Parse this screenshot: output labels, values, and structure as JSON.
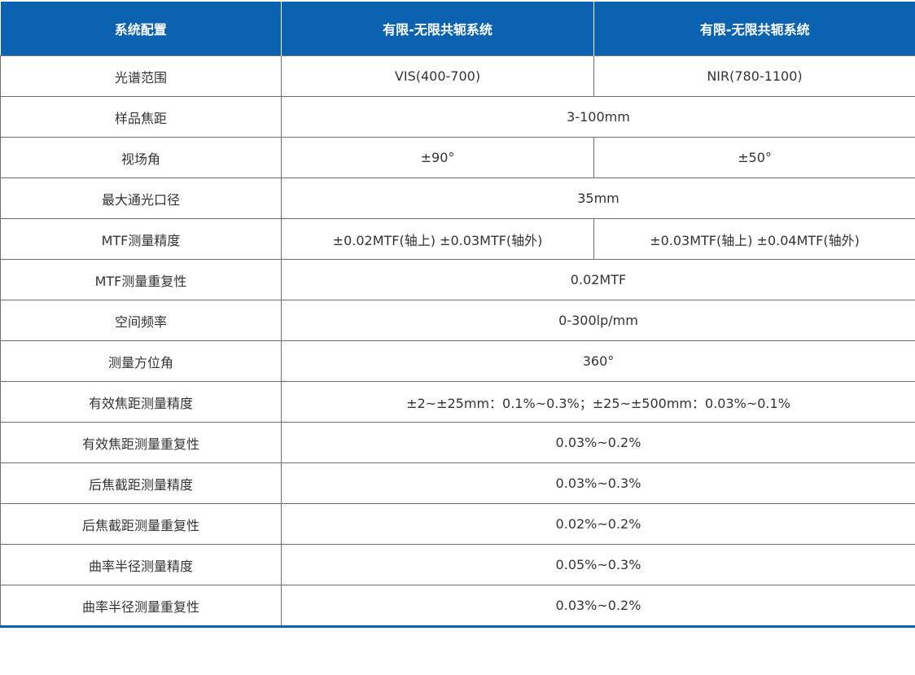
{
  "table": {
    "headers": [
      "系统配置",
      "有限-无限共轭系统",
      "有限-无限共轭系统"
    ],
    "rows": [
      {
        "label": "光谱范围",
        "values": [
          "VIS(400-700)",
          "NIR(780-1100)"
        ]
      },
      {
        "label": "样品焦距",
        "values": [
          "3-100mm"
        ]
      },
      {
        "label": "视场角",
        "values": [
          "±90°",
          "±50°"
        ]
      },
      {
        "label": "最大通光口径",
        "values": [
          "35mm"
        ]
      },
      {
        "label": "MTF测量精度",
        "values": [
          "±0.02MTF(轴上)   ±0.03MTF(轴外)",
          "±0.03MTF(轴上)   ±0.04MTF(轴外)"
        ]
      },
      {
        "label": "MTF测量重复性",
        "values": [
          "0.02MTF"
        ]
      },
      {
        "label": "空间频率",
        "values": [
          "0-300lp/mm"
        ]
      },
      {
        "label": "测量方位角",
        "values": [
          "360°"
        ]
      },
      {
        "label": "有效焦距测量精度",
        "values": [
          "±2~±25mm：0.1%~0.3%；±25~±500mm：0.03%~0.1%"
        ]
      },
      {
        "label": "有效焦距测量重复性",
        "values": [
          "0.03%~0.2%"
        ]
      },
      {
        "label": "后焦截距测量精度",
        "values": [
          "0.03%~0.3%"
        ]
      },
      {
        "label": "后焦截距测量重复性",
        "values": [
          "0.02%~0.2%"
        ]
      },
      {
        "label": "曲率半径测量精度",
        "values": [
          "0.05%~0.3%"
        ]
      },
      {
        "label": "曲率半径测量重复性",
        "values": [
          "0.03%~0.2%"
        ]
      }
    ]
  },
  "colors": {
    "header_bg": "#0a62b0",
    "header_text": "#ffffff",
    "border": "#6e6e6e",
    "body_text": "#333333"
  }
}
